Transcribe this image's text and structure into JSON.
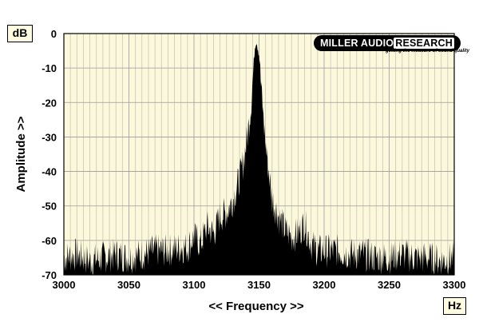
{
  "chart_data": {
    "type": "area",
    "xlabel": "<< Frequency >>",
    "ylabel": "Amplitude >>",
    "x_unit": "Hz",
    "y_unit": "dB",
    "xlim": [
      3000,
      3300
    ],
    "ylim": [
      -70,
      0
    ],
    "x_ticks": [
      "3000",
      "3050",
      "3100",
      "3150",
      "3200",
      "3250",
      "3300"
    ],
    "y_ticks": [
      "0",
      "-10",
      "-20",
      "-30",
      "-40",
      "-50",
      "-60",
      "-70"
    ],
    "grid": true,
    "background_color": "#fbf8dc",
    "fill_color": "#000000",
    "spectrum": {
      "x": [
        3000,
        3010,
        3020,
        3030,
        3040,
        3050,
        3060,
        3070,
        3080,
        3090,
        3095,
        3100,
        3105,
        3110,
        3115,
        3120,
        3125,
        3130,
        3135,
        3138,
        3141,
        3144,
        3146,
        3147,
        3148,
        3150,
        3152,
        3155,
        3158,
        3160,
        3165,
        3170,
        3175,
        3180,
        3185,
        3190,
        3195,
        3200,
        3210,
        3220,
        3230,
        3240,
        3250,
        3260,
        3270,
        3280,
        3290,
        3300
      ],
      "y": [
        -65,
        -64,
        -66,
        -65,
        -64,
        -65,
        -64,
        -63,
        -63,
        -62,
        -62,
        -59,
        -61,
        -56,
        -58,
        -53,
        -52,
        -48,
        -42,
        -37,
        -30,
        -20,
        -8,
        -3,
        -2,
        -6,
        -18,
        -32,
        -42,
        -48,
        -53,
        -57,
        -59,
        -58,
        -55,
        -61,
        -63,
        -63,
        -63,
        -64,
        -64,
        -65,
        -65,
        -64,
        -65,
        -65,
        -66,
        -65
      ]
    }
  },
  "logo": {
    "name_part1": "MILLER AUDIO",
    "name_part2": "RESEARCH",
    "tagline": "getting the measure of sound quality"
  }
}
